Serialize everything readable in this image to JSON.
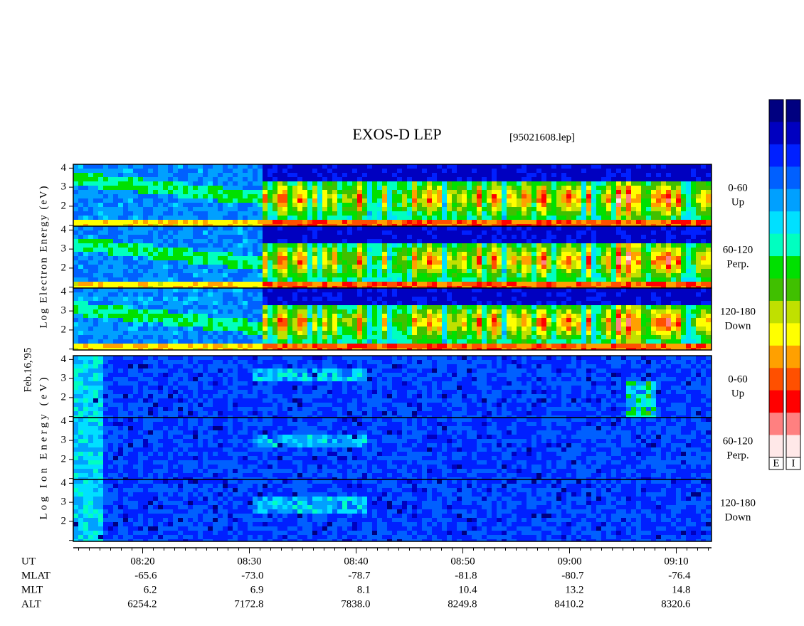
{
  "chart_data": {
    "type": "spectrogram",
    "title": "EXOS-D LEP",
    "file": "[95021608.lep]",
    "date_label": "Feb.16,'95",
    "xlim": [
      493.5,
      553.3
    ],
    "xticks": [
      {
        "value": 500,
        "label": "08:20"
      },
      {
        "value": 510,
        "label": "08:30"
      },
      {
        "value": 520,
        "label": "08:40"
      },
      {
        "value": 530,
        "label": "08:50"
      },
      {
        "value": 540,
        "label": "09:00"
      },
      {
        "value": 550,
        "label": "09:10"
      }
    ],
    "xminorticks": [
      494,
      495,
      496,
      497,
      498,
      499,
      500,
      501,
      502,
      503,
      504,
      505,
      506,
      507,
      508,
      509,
      510,
      511,
      512,
      513,
      514,
      515,
      516,
      517,
      518,
      519,
      520,
      521,
      522,
      523,
      524,
      525,
      526,
      527,
      528,
      529,
      530,
      531,
      532,
      533,
      534,
      535,
      536,
      537,
      538,
      539,
      540,
      541,
      542,
      543,
      544,
      545,
      546,
      547,
      548,
      549,
      550,
      551,
      552,
      553
    ],
    "ylim": [
      0.95,
      4.2
    ],
    "yticks": [
      2,
      3,
      4
    ],
    "yticks_unlabeled": [
      1
    ],
    "blocks": [
      {
        "ylabel": "Log Electron Energy (eV)",
        "panels": [
          {
            "pitch": "0-60",
            "direction": "Up"
          },
          {
            "pitch": "60-120",
            "direction": "Perp."
          },
          {
            "pitch": "120-180",
            "direction": "Down"
          }
        ]
      },
      {
        "ylabel": "Log Ion Energy (eV)",
        "panels": [
          {
            "pitch": "0-60",
            "direction": "Up"
          },
          {
            "pitch": "60-120",
            "direction": "Perp."
          },
          {
            "pitch": "120-180",
            "direction": "Down"
          }
        ]
      }
    ],
    "x_label": "UT",
    "orbit": [
      {
        "name": "MLAT",
        "values": [
          "-65.6",
          "-73.0",
          "-78.7",
          "-81.8",
          "-80.7",
          "-76.4"
        ]
      },
      {
        "name": "MLT",
        "values": [
          "6.2",
          "6.9",
          "8.1",
          "10.4",
          "13.2",
          "14.8"
        ]
      },
      {
        "name": "ALT",
        "values": [
          "6254.2",
          "7172.8",
          "7838.0",
          "8249.8",
          "8410.2",
          "8320.6"
        ]
      }
    ],
    "colorbar_labels": [
      "E",
      "I"
    ],
    "colormap": [
      "#000080",
      "#0000c0",
      "#0020ff",
      "#0060ff",
      "#00a0ff",
      "#00e0ff",
      "#00ffc0",
      "#00e000",
      "#40c000",
      "#c0e000",
      "#ffff00",
      "#ffa000",
      "#ff5000",
      "#ff0000",
      "#ff8080",
      "#ffe8e8"
    ]
  }
}
